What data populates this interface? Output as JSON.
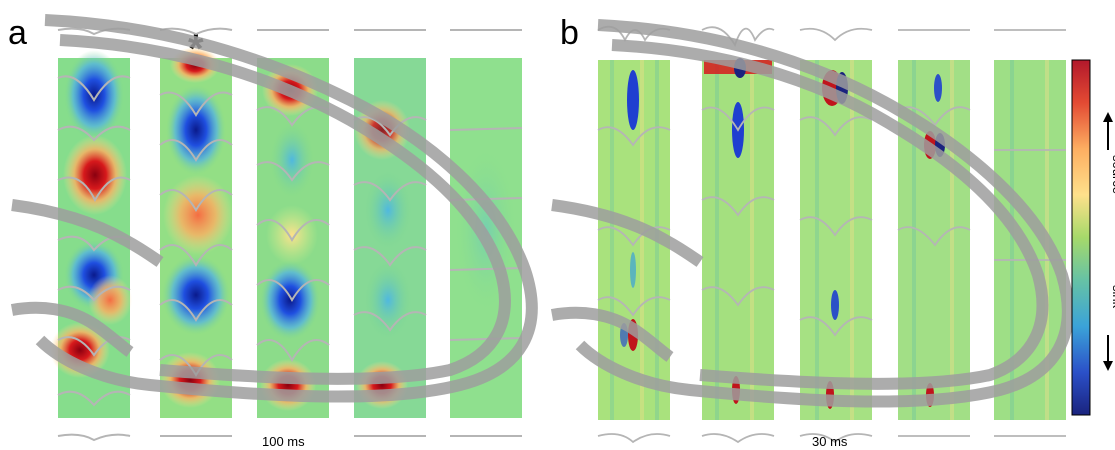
{
  "panels": [
    {
      "letter": "a",
      "scale_label": "100 ms",
      "marker": "*"
    },
    {
      "letter": "b",
      "scale_label": "30 ms"
    }
  ],
  "colorbar": {
    "top_label": "source",
    "bottom_label": "sink",
    "colors": [
      "#b2182b",
      "#e34a33",
      "#fc8d59",
      "#fdae61",
      "#fee08b",
      "#d9ef8b",
      "#91cf60",
      "#66c2a5",
      "#3288bd",
      "#2b50c8",
      "#1a237e"
    ]
  },
  "colors": {
    "background_field": "#7fd98a",
    "source": "#c0141c",
    "sink": "#1a3fd6",
    "trace": "#b0b0b0",
    "anatomy": "#9e9e9e"
  }
}
